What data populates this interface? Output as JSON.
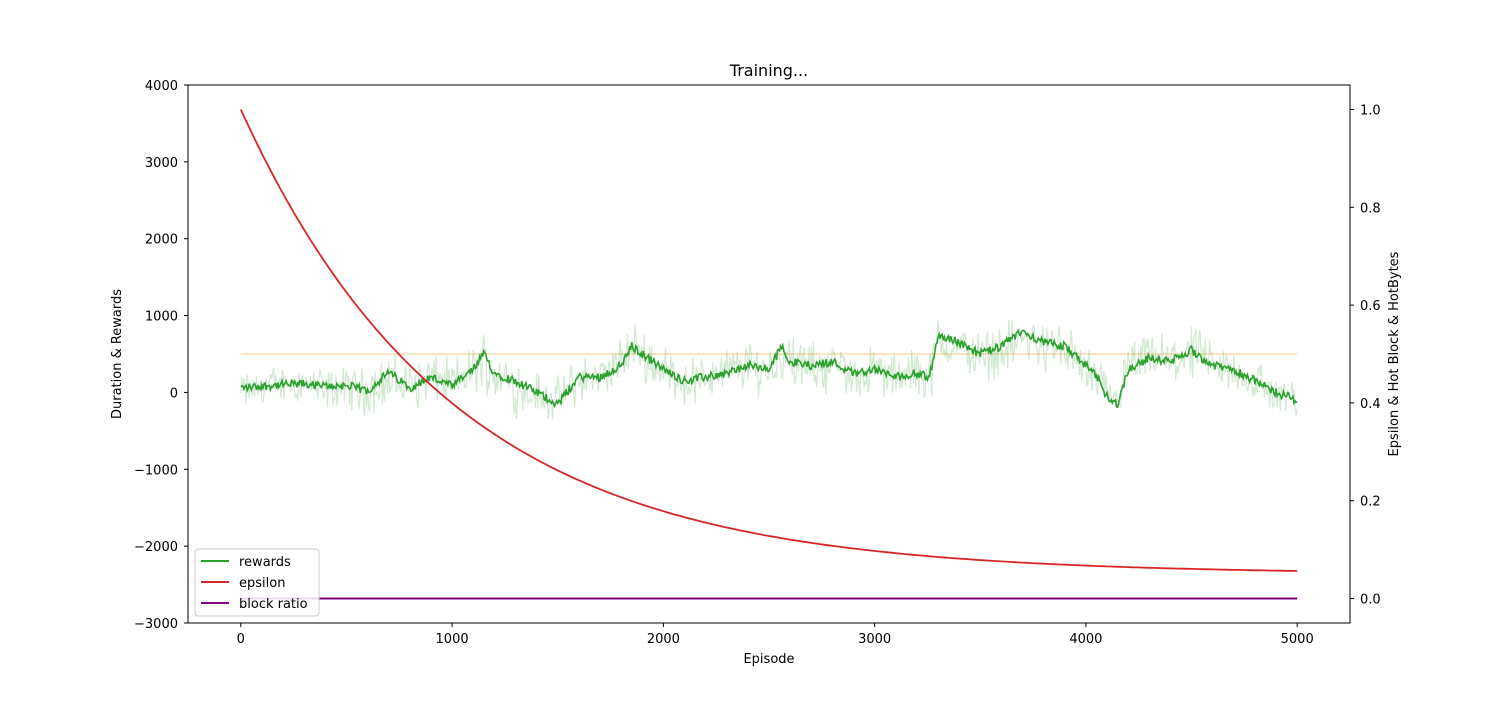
{
  "chart_data": {
    "type": "line",
    "title": "Training...",
    "xlabel": "Episode",
    "ylabel_left": "Duration & Rewards",
    "ylabel_right": "Epsilon & Hot Block & HotBytes",
    "xlim": [
      -250,
      5250
    ],
    "ylim_left": [
      -3000,
      4000
    ],
    "ylim_right": [
      -0.05,
      1.05
    ],
    "x_ticks": [
      0,
      1000,
      2000,
      3000,
      4000,
      5000
    ],
    "x_tick_labels": [
      "0",
      "1000",
      "2000",
      "3000",
      "4000",
      "5000"
    ],
    "y_ticks_left": [
      -3000,
      -2000,
      -1000,
      0,
      1000,
      2000,
      3000,
      4000
    ],
    "y_tick_labels_left": [
      "−3000",
      "−2000",
      "−1000",
      "0",
      "1000",
      "2000",
      "3000",
      "4000"
    ],
    "y_ticks_right": [
      0.0,
      0.2,
      0.4,
      0.6,
      0.8,
      1.0
    ],
    "y_tick_labels_right": [
      "0.0",
      "0.2",
      "0.4",
      "0.6",
      "0.8",
      "1.0"
    ],
    "grid": false,
    "legend_placement": "lower-left",
    "series": [
      {
        "name": "rewards",
        "axis": "left",
        "color": "#2ca02c",
        "x": [
          0,
          100,
          200,
          300,
          400,
          500,
          600,
          700,
          800,
          900,
          1000,
          1100,
          1150,
          1200,
          1300,
          1400,
          1500,
          1600,
          1700,
          1800,
          1850,
          1900,
          2000,
          2100,
          2200,
          2300,
          2400,
          2500,
          2560,
          2600,
          2700,
          2800,
          2900,
          3000,
          3100,
          3200,
          3250,
          3270,
          3300,
          3400,
          3500,
          3600,
          3700,
          3800,
          3900,
          4000,
          4050,
          4100,
          4150,
          4200,
          4300,
          4400,
          4500,
          4600,
          4700,
          4800,
          4900,
          5000
        ],
        "values": [
          60,
          80,
          100,
          110,
          80,
          90,
          20,
          260,
          60,
          200,
          80,
          300,
          500,
          250,
          150,
          0,
          -150,
          200,
          200,
          350,
          600,
          500,
          300,
          150,
          200,
          250,
          350,
          300,
          600,
          400,
          350,
          400,
          250,
          300,
          200,
          250,
          200,
          300,
          750,
          650,
          500,
          600,
          800,
          650,
          600,
          350,
          200,
          -50,
          -150,
          300,
          450,
          400,
          550,
          350,
          300,
          150,
          0,
          -100
        ],
        "band_low": [
          -300,
          -200,
          -150,
          -200,
          -300,
          -250,
          -350,
          -250,
          -350,
          -200,
          -300,
          -100,
          0,
          -200,
          -350,
          -400,
          -500,
          -200,
          -150,
          0,
          150,
          100,
          -100,
          -250,
          -150,
          -100,
          -50,
          -100,
          100,
          0,
          -100,
          -50,
          -150,
          -100,
          -150,
          -100,
          -150,
          -100,
          300,
          200,
          100,
          150,
          300,
          200,
          150,
          -100,
          -200,
          -450,
          -400,
          -100,
          50,
          0,
          100,
          -50,
          -100,
          -250,
          -400,
          -450
        ],
        "band_high": [
          300,
          350,
          400,
          450,
          350,
          400,
          400,
          550,
          500,
          600,
          500,
          700,
          850,
          650,
          500,
          350,
          250,
          550,
          550,
          750,
          1000,
          900,
          700,
          500,
          550,
          650,
          750,
          700,
          950,
          800,
          700,
          750,
          600,
          650,
          550,
          650,
          550,
          700,
          1050,
          950,
          850,
          950,
          1100,
          1000,
          950,
          700,
          550,
          300,
          200,
          700,
          850,
          800,
          950,
          700,
          650,
          500,
          350,
          200
        ]
      },
      {
        "name": "epsilon",
        "axis": "right",
        "color": "#d62728",
        "decay": {
          "start": 1.0,
          "end": 0.05,
          "rate": 0.001,
          "x_max": 5000
        }
      },
      {
        "name": "block ratio",
        "axis": "right",
        "color": "#800080",
        "x": [
          0,
          5000
        ],
        "values": [
          0.0,
          0.0
        ]
      },
      {
        "name": "",
        "axis": "right",
        "color": "#ffe4c4",
        "x": [
          0,
          5000
        ],
        "values": [
          0.5,
          0.5
        ]
      }
    ]
  }
}
